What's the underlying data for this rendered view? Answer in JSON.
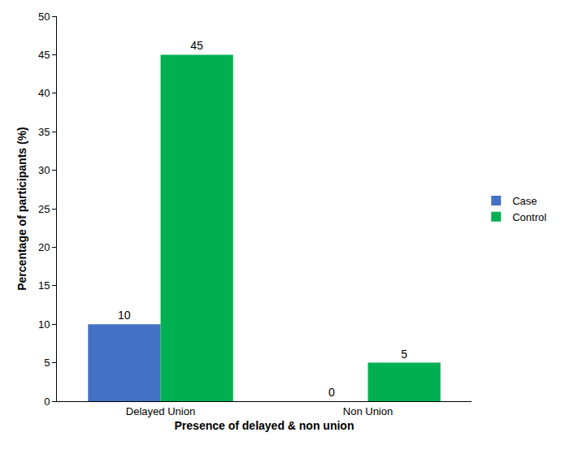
{
  "chart_data": {
    "type": "bar",
    "x_label": "Presence of delayed & non union",
    "y_label": "Percentage of participants (%)",
    "categories": [
      "Delayed Union",
      "Non Union"
    ],
    "series": [
      {
        "name": "Case",
        "color": "#4472c4",
        "values": [
          10,
          0
        ]
      },
      {
        "name": "Control",
        "color": "#00b050",
        "values": [
          45,
          5
        ]
      }
    ],
    "ylim": [
      0,
      50
    ],
    "yticks": [
      0,
      5,
      10,
      15,
      20,
      25,
      30,
      35,
      40,
      45,
      50
    ],
    "grid": false,
    "legend": "right",
    "data_labels": true
  }
}
